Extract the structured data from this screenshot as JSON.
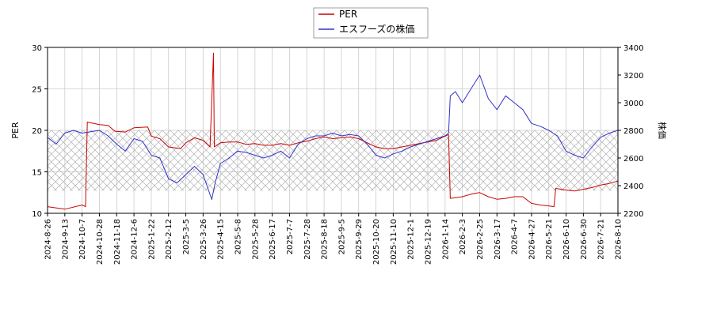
{
  "chart_data": {
    "type": "line",
    "legend": [
      "PER",
      "エスフーズの株価"
    ],
    "legend_position": "top-center",
    "grid": true,
    "band_hatched": true,
    "xlabels": [
      "2024-8-26",
      "2024-9-13",
      "2024-10-7",
      "2024-10-28",
      "2024-11-18",
      "2024-12-6",
      "2025-1-22",
      "2025-2-12",
      "2025-3-5",
      "2025-3-26",
      "2025-4-15",
      "2025-5-8",
      "2025-5-28",
      "2025-6-17",
      "2025-7-7",
      "2025-7-28",
      "2025-8-18",
      "2025-9-5",
      "2025-9-29",
      "2025-10-20",
      "2025-11-10",
      "2025-12-1",
      "2025-12-19",
      "2026-1-14",
      "2026-2-3",
      "2026-2-25",
      "2026-3-17",
      "2026-4-7",
      "2026-4-27",
      "2026-5-21",
      "2026-6-10",
      "2026-6-30",
      "2026-7-21",
      "2026-8-10"
    ],
    "left_axis": {
      "label": "PER",
      "ylim": [
        10,
        30
      ],
      "ticks": [
        "10",
        "15",
        "20",
        "25",
        "30"
      ]
    },
    "right_axis": {
      "label": "株価",
      "ylim": [
        2200,
        3400
      ],
      "ticks": [
        "2200",
        "2400",
        "2600",
        "2800",
        "3000",
        "3200",
        "3400"
      ]
    },
    "per_band": [
      12.7,
      20.0
    ],
    "series": [
      {
        "name": "PER",
        "color": "#cc0000",
        "axis": "left",
        "points": [
          [
            0,
            10.8
          ],
          [
            1,
            10.5
          ],
          [
            2,
            11.0
          ],
          [
            2.2,
            10.8
          ],
          [
            2.3,
            21.0
          ],
          [
            3,
            20.7
          ],
          [
            3.5,
            20.6
          ],
          [
            3.9,
            19.9
          ],
          [
            4.5,
            19.8
          ],
          [
            5,
            20.3
          ],
          [
            5.8,
            20.4
          ],
          [
            6,
            19.3
          ],
          [
            6.5,
            19.0
          ],
          [
            7,
            18.0
          ],
          [
            7.7,
            17.8
          ],
          [
            8,
            18.5
          ],
          [
            8.5,
            19.1
          ],
          [
            9,
            18.8
          ],
          [
            9.4,
            18.0
          ],
          [
            9.6,
            29.3
          ],
          [
            9.65,
            18.0
          ],
          [
            10,
            18.5
          ],
          [
            10.5,
            18.6
          ],
          [
            11,
            18.6
          ],
          [
            11.5,
            18.3
          ],
          [
            12,
            18.4
          ],
          [
            12.5,
            18.2
          ],
          [
            13,
            18.2
          ],
          [
            13.5,
            18.4
          ],
          [
            14,
            18.2
          ],
          [
            14.5,
            18.5
          ],
          [
            15,
            18.7
          ],
          [
            15.5,
            19.0
          ],
          [
            16,
            19.2
          ],
          [
            16.5,
            19.0
          ],
          [
            17,
            19.1
          ],
          [
            17.5,
            19.2
          ],
          [
            18,
            19.0
          ],
          [
            18.5,
            18.5
          ],
          [
            19,
            18.0
          ],
          [
            19.5,
            17.8
          ],
          [
            20,
            17.8
          ],
          [
            20.5,
            18.0
          ],
          [
            21,
            18.2
          ],
          [
            21.5,
            18.4
          ],
          [
            22,
            18.6
          ],
          [
            22.5,
            18.8
          ],
          [
            23,
            19.3
          ],
          [
            23.2,
            19.5
          ],
          [
            23.3,
            11.8
          ],
          [
            24,
            12.0
          ],
          [
            24.5,
            12.3
          ],
          [
            25,
            12.5
          ],
          [
            25.5,
            12.0
          ],
          [
            26,
            11.7
          ],
          [
            26.5,
            11.8
          ],
          [
            27,
            12.0
          ],
          [
            27.5,
            12.0
          ],
          [
            28,
            11.2
          ],
          [
            28.5,
            11.0
          ],
          [
            29,
            10.9
          ],
          [
            29.3,
            10.8
          ],
          [
            29.4,
            13.0
          ],
          [
            30,
            12.8
          ],
          [
            30.5,
            12.7
          ],
          [
            31,
            12.9
          ],
          [
            31.5,
            13.1
          ],
          [
            32,
            13.4
          ],
          [
            32.5,
            13.6
          ],
          [
            33,
            13.9
          ],
          [
            33.5,
            14.2
          ]
        ]
      },
      {
        "name": "エスフーズの株価",
        "color": "#3333cc",
        "axis": "right",
        "points": [
          [
            0,
            2750
          ],
          [
            0.5,
            2700
          ],
          [
            1,
            2780
          ],
          [
            1.5,
            2800
          ],
          [
            2,
            2780
          ],
          [
            2.5,
            2790
          ],
          [
            3,
            2800
          ],
          [
            3.5,
            2760
          ],
          [
            4,
            2700
          ],
          [
            4.5,
            2650
          ],
          [
            5,
            2740
          ],
          [
            5.5,
            2720
          ],
          [
            6,
            2620
          ],
          [
            6.5,
            2600
          ],
          [
            7,
            2450
          ],
          [
            7.5,
            2420
          ],
          [
            8,
            2480
          ],
          [
            8.5,
            2540
          ],
          [
            9,
            2480
          ],
          [
            9.5,
            2300
          ],
          [
            9.7,
            2420
          ],
          [
            10,
            2560
          ],
          [
            10.5,
            2600
          ],
          [
            11,
            2650
          ],
          [
            11.5,
            2640
          ],
          [
            12,
            2620
          ],
          [
            12.5,
            2600
          ],
          [
            13,
            2620
          ],
          [
            13.5,
            2650
          ],
          [
            14,
            2600
          ],
          [
            14.5,
            2700
          ],
          [
            15,
            2740
          ],
          [
            15.5,
            2760
          ],
          [
            16,
            2760
          ],
          [
            16.5,
            2780
          ],
          [
            17,
            2760
          ],
          [
            17.5,
            2770
          ],
          [
            18,
            2760
          ],
          [
            18.5,
            2700
          ],
          [
            19,
            2620
          ],
          [
            19.5,
            2600
          ],
          [
            20,
            2630
          ],
          [
            20.5,
            2650
          ],
          [
            21,
            2680
          ],
          [
            21.5,
            2700
          ],
          [
            22,
            2720
          ],
          [
            22.5,
            2740
          ],
          [
            23,
            2760
          ],
          [
            23.2,
            2780
          ],
          [
            23.3,
            3050
          ],
          [
            23.6,
            3080
          ],
          [
            24,
            3000
          ],
          [
            24.5,
            3100
          ],
          [
            25,
            3200
          ],
          [
            25.5,
            3030
          ],
          [
            26,
            2950
          ],
          [
            26.5,
            3050
          ],
          [
            27,
            3000
          ],
          [
            27.5,
            2950
          ],
          [
            28,
            2850
          ],
          [
            28.5,
            2830
          ],
          [
            29,
            2800
          ],
          [
            29.5,
            2760
          ],
          [
            30,
            2650
          ],
          [
            30.5,
            2620
          ],
          [
            31,
            2600
          ],
          [
            31.5,
            2680
          ],
          [
            32,
            2750
          ],
          [
            32.5,
            2780
          ],
          [
            33,
            2800
          ],
          [
            33.5,
            2850
          ],
          [
            34,
            2880
          ]
        ]
      }
    ]
  }
}
